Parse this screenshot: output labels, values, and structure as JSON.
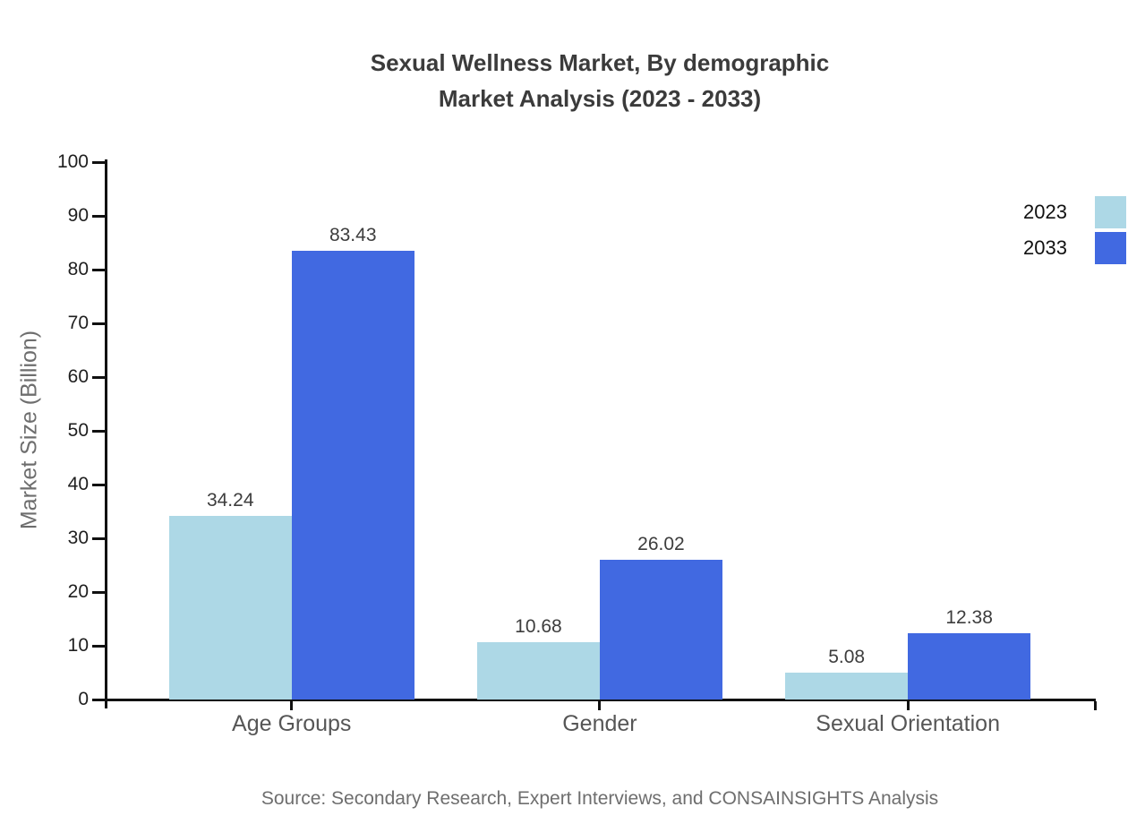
{
  "title": {
    "line1": "Sexual Wellness Market, By demographic",
    "line2": "Market Analysis (2023 - 2033)"
  },
  "source": "Source: Secondary Research, Expert Interviews, and CONSAINSIGHTS Analysis",
  "chart_data": {
    "type": "bar",
    "title": "Sexual Wellness Market, By demographic Market Analysis (2023 - 2033)",
    "categories": [
      "Age Groups",
      "Gender",
      "Sexual Orientation"
    ],
    "series": [
      {
        "name": "2023",
        "color": "#ADD8E6",
        "values": [
          34.24,
          10.68,
          5.08
        ]
      },
      {
        "name": "2033",
        "color": "#4169E1",
        "values": [
          83.43,
          26.02,
          12.38
        ]
      }
    ],
    "xlabel": "",
    "ylabel": "Market Size (Billion)",
    "ylim": [
      0,
      100
    ],
    "ytick_step": 10,
    "grid": false,
    "legend_position": "top-right",
    "value_labels": true,
    "value_label_decimals": 2
  },
  "colors": {
    "axis": "#111111",
    "title_text": "#3b3b3b",
    "tick_label_text": "#1f1f1f",
    "category_label_text": "#565656",
    "muted_text": "#6e6e6e",
    "value_label_text": "#3d3d3d"
  }
}
